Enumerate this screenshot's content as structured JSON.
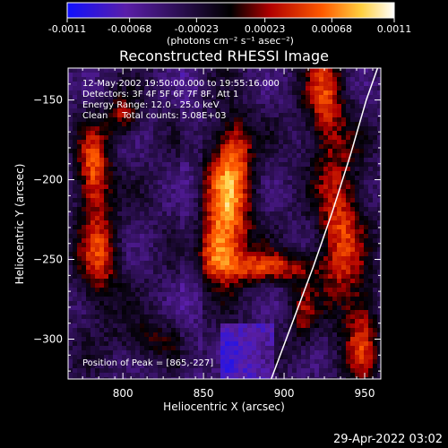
{
  "colorbar": {
    "tick_labels": [
      "-0.0011",
      "-0.00068",
      "-0.00023",
      "0.00023",
      "0.00068",
      "0.0011"
    ],
    "tick_values": [
      -0.0011,
      -0.00068,
      -0.00023,
      0.00023,
      0.00068,
      0.0011
    ],
    "range": [
      -0.0011,
      0.0011
    ],
    "units_label": "(photons cm⁻² s⁻¹ asec⁻²)",
    "colors": [
      "#1010ff",
      "#5a1ea8",
      "#000000",
      "#b00000",
      "#ff5a00",
      "#ffd040",
      "#ffffff"
    ]
  },
  "chart_data": {
    "type": "heatmap",
    "title": "Reconstructed RHESSI Image",
    "xlabel": "Heliocentric X (arcsec)",
    "ylabel": "Heliocentric Y (arcsec)",
    "xlim": [
      766,
      960
    ],
    "ylim": [
      -325,
      -130
    ],
    "x_ticks": [
      800,
      850,
      900,
      950
    ],
    "y_ticks": [
      -150,
      -200,
      -250,
      -300
    ],
    "annotations": [
      "12-May-2002 19:50:00.000 to 19:55:16.000",
      "Detectors: 3F 4F 5F 6F 7F 8F, Att 1",
      "Energy Range: 12.0 - 25.0 keV",
      "Clean     Total counts: 5.08E+03",
      "Position of Peak = [865,-227]"
    ],
    "peak": [
      865,
      -227
    ],
    "limb_curve": [
      [
        892,
        -325
      ],
      [
        905,
        -290
      ],
      [
        918,
        -255
      ],
      [
        930,
        -220
      ],
      [
        941,
        -185
      ],
      [
        951,
        -150
      ],
      [
        958,
        -130
      ]
    ]
  },
  "footer": {
    "timestamp": "29-Apr-2022 03:02"
  }
}
